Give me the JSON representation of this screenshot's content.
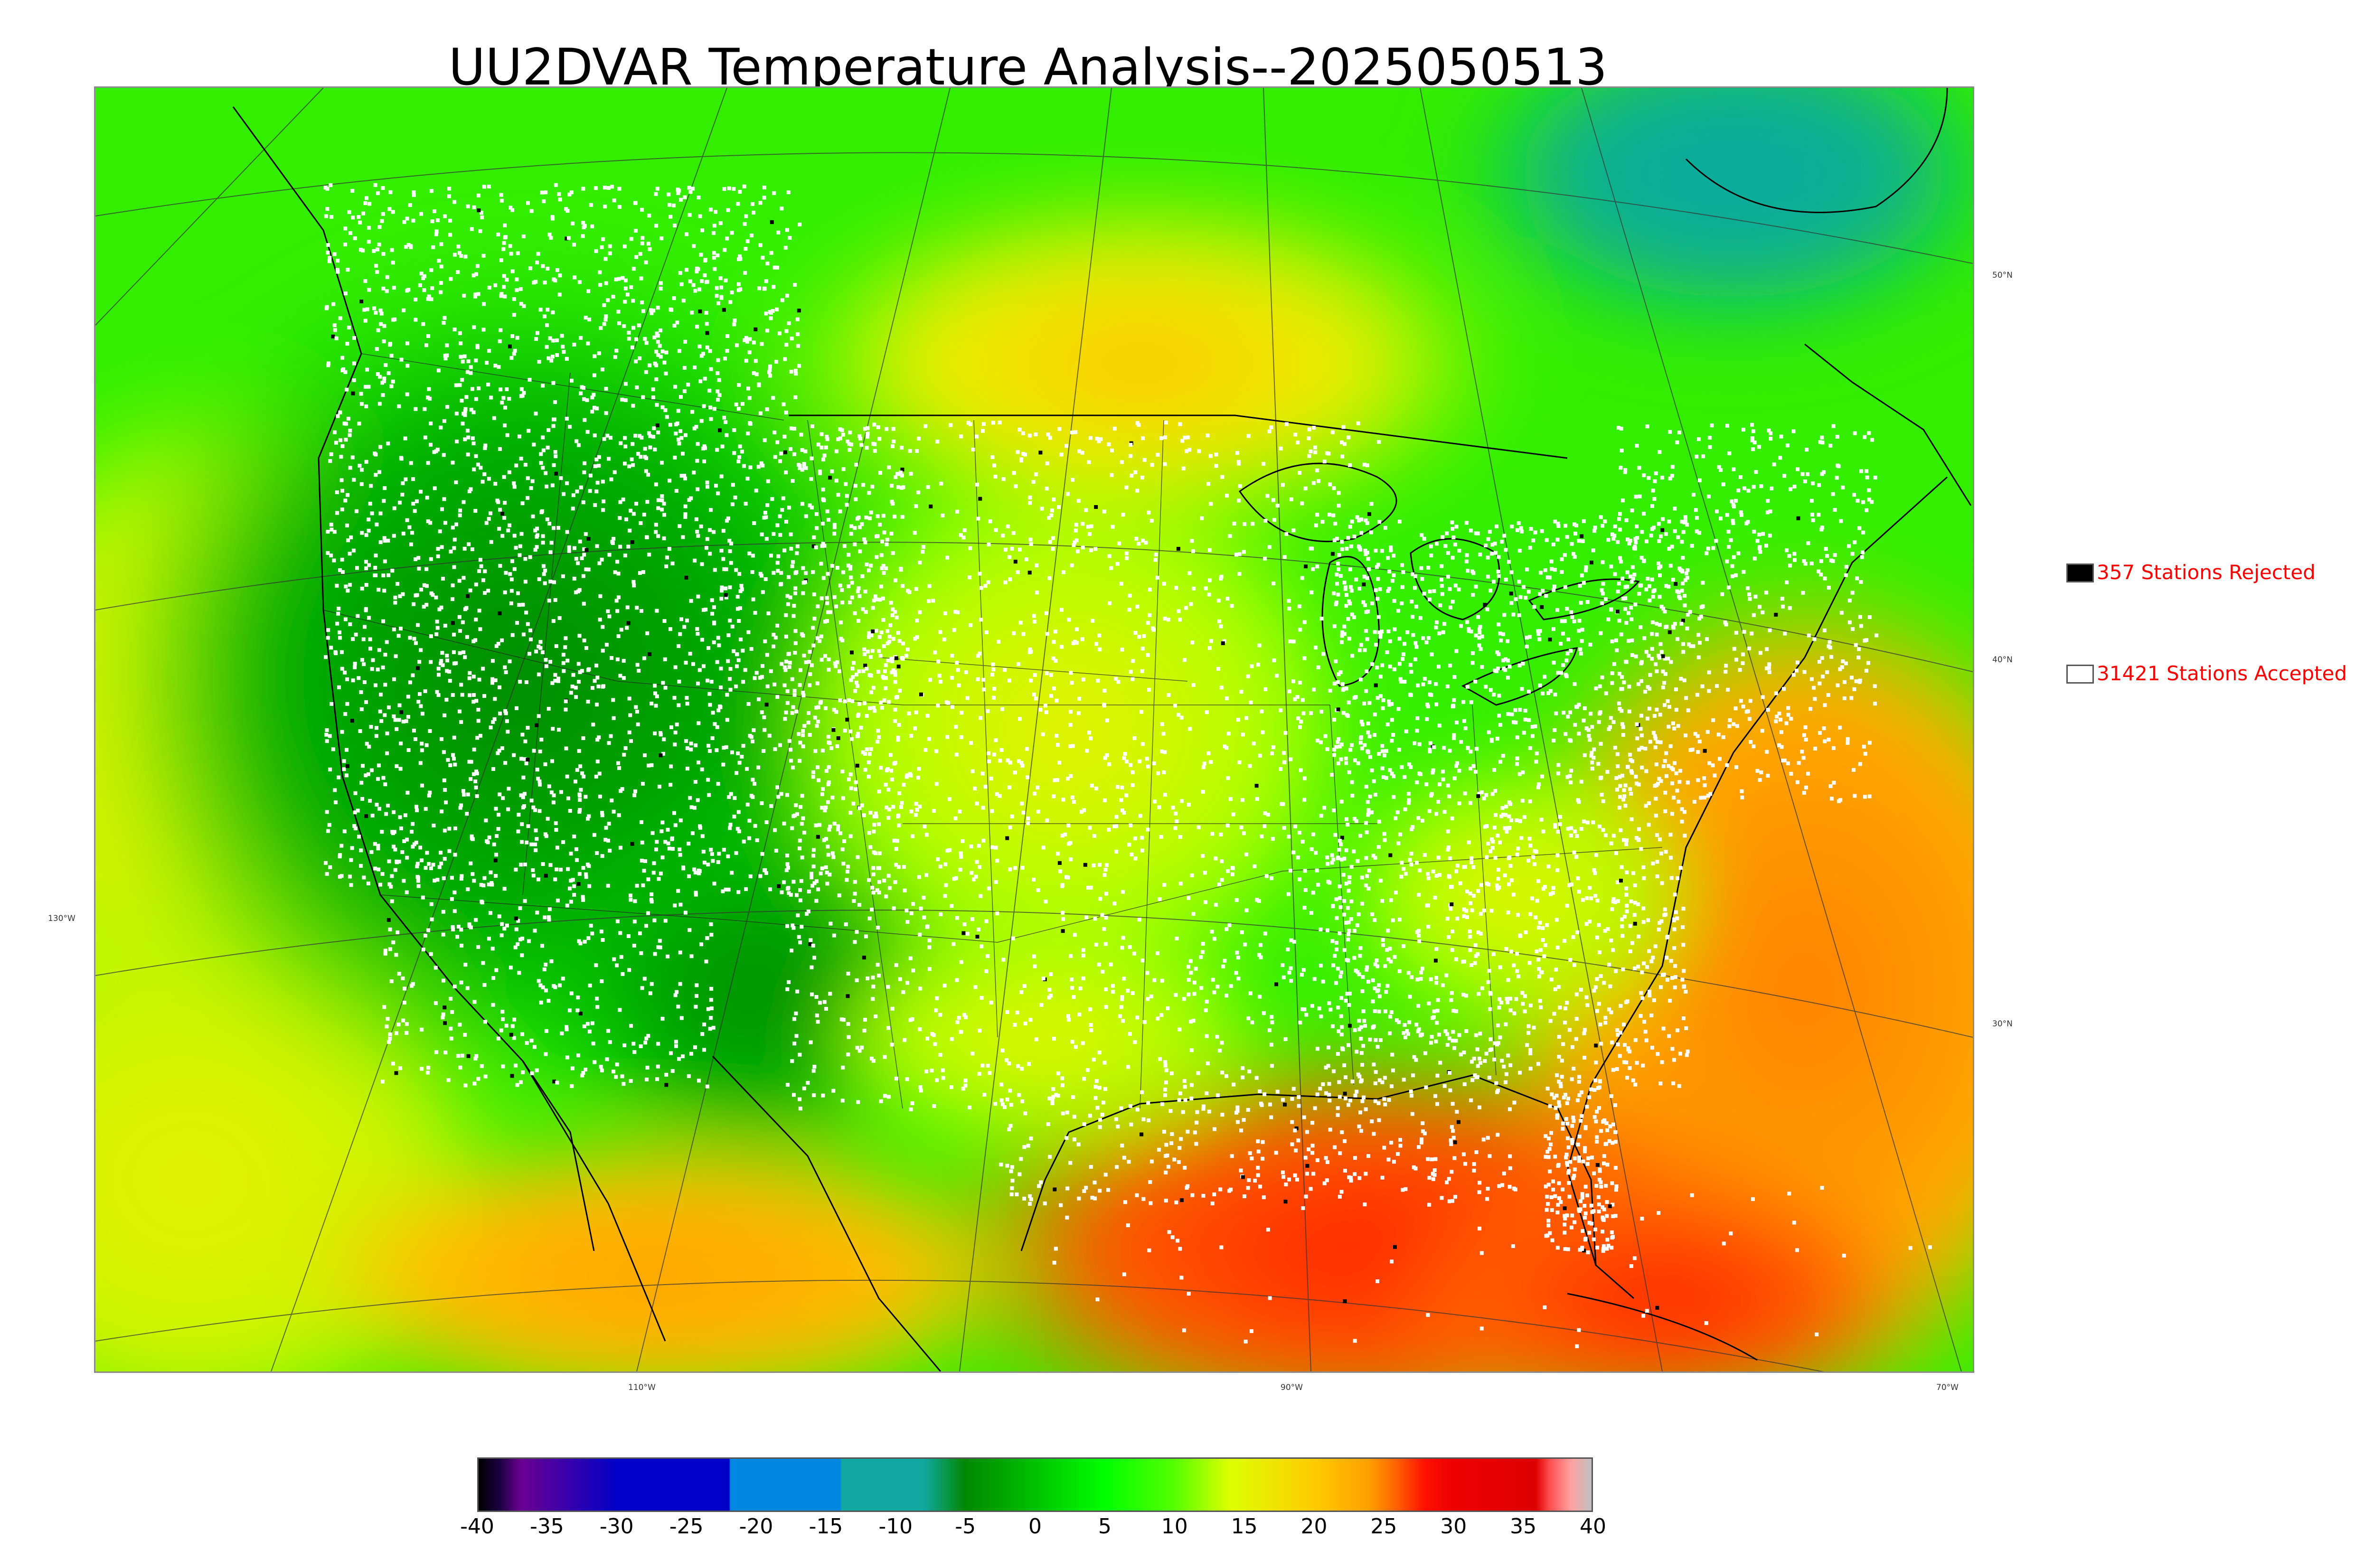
{
  "title": "UU2DVAR Temperature Analysis--2025050513",
  "map": {
    "lon_labels": [
      "130°W",
      "110°W",
      "90°W",
      "70°W"
    ],
    "lat_labels": [
      "50°N",
      "40°N",
      "30°N"
    ],
    "palette": {
      "cold_dark": "#006400",
      "green": "#00cc00",
      "bright_green": "#22ff00",
      "lime": "#a8ff00",
      "yellow": "#e8f000",
      "orange": "#ffaa00",
      "red_orange": "#ff5a00",
      "red": "#ff2000",
      "teal": "#10b0a0",
      "coast_line": "#000000",
      "accepted_marker": "#ffffff",
      "rejected_marker": "#000000"
    }
  },
  "legend": {
    "rejected": {
      "text": "357 Stations Rejected",
      "swatch_color": "#000000"
    },
    "accepted": {
      "text": "31421 Stations Accepted",
      "swatch_color": "#ffffff"
    }
  },
  "colorbar": {
    "min": -40,
    "max": 40,
    "tick_labels": [
      "-40",
      "-35",
      "-30",
      "-25",
      "-20",
      "-15",
      "-10",
      "-5",
      "0",
      "5",
      "10",
      "15",
      "20",
      "25",
      "30",
      "35",
      "40"
    ],
    "stops": [
      {
        "value": -40,
        "color": "#000000"
      },
      {
        "value": -38.5,
        "color": "#1a0040"
      },
      {
        "value": -37,
        "color": "#6a0090"
      },
      {
        "value": -30,
        "color": "#0000c8"
      },
      {
        "value": -22,
        "color": "#0000c8"
      },
      {
        "value": -21.9,
        "color": "#0088e0"
      },
      {
        "value": -14,
        "color": "#0088e0"
      },
      {
        "value": -13.9,
        "color": "#10a8a0"
      },
      {
        "value": -8,
        "color": "#10a8a0"
      },
      {
        "value": -5,
        "color": "#008800"
      },
      {
        "value": -2,
        "color": "#00aa00"
      },
      {
        "value": 5,
        "color": "#00ff00"
      },
      {
        "value": 10,
        "color": "#55ff00"
      },
      {
        "value": 14,
        "color": "#ddff00"
      },
      {
        "value": 20,
        "color": "#ffcc00"
      },
      {
        "value": 24,
        "color": "#ffa000"
      },
      {
        "value": 26,
        "color": "#ff6000"
      },
      {
        "value": 28,
        "color": "#ff1000"
      },
      {
        "value": 30,
        "color": "#ee0000"
      },
      {
        "value": 36,
        "color": "#dd0000"
      },
      {
        "value": 37,
        "color": "#ff5050"
      },
      {
        "value": 38.5,
        "color": "#ffa0a0"
      },
      {
        "value": 40,
        "color": "#c0c0c0"
      }
    ]
  }
}
